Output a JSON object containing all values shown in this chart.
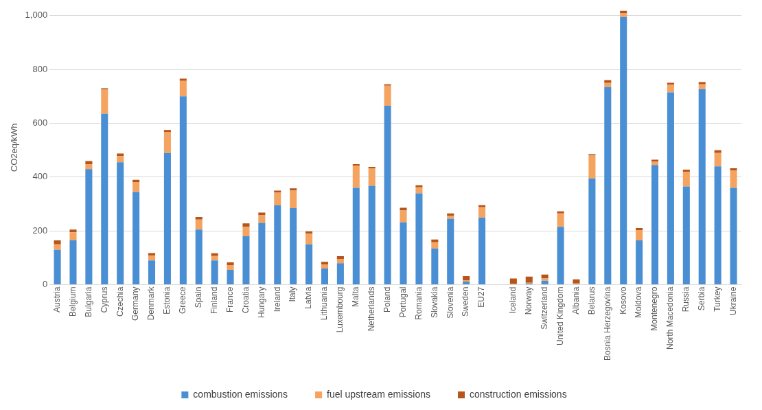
{
  "chart_data": {
    "type": "bar",
    "stacked": true,
    "ylabel": "CO2eq/kWh",
    "ylim": [
      0,
      1020
    ],
    "yticks": [
      0,
      200,
      400,
      600,
      800,
      {
        "value": 1000,
        "label": "1,000"
      }
    ],
    "grid": "y",
    "legend": "bottom",
    "categories": [
      "Austria",
      "Belgium",
      "Bulgaria",
      "Cyprus",
      "Czechia",
      "Germany",
      "Denmark",
      "Estonia",
      "Greece",
      "Spain",
      "Finland",
      "France",
      "Croatia",
      "Hungary",
      "Ireland",
      "Italy",
      "Latvia",
      "Lithuania",
      "Luxembourg",
      "Malta",
      "Netherlands",
      "Poland",
      "Portugal",
      "Romania",
      "Slovakia",
      "Slovenia",
      "Sweden",
      "EU27",
      null,
      "Iceland",
      "Norway",
      "Switzerland",
      "United Kingdom",
      "Albania",
      "Belarus",
      "Bosnia Herzegovina",
      "Kosovo",
      "Moldova",
      "Montenegro",
      "North Macedonia",
      "Russia",
      "Serbia",
      "Turkey",
      "Ukraine"
    ],
    "series": [
      {
        "name": "combustion emissions",
        "color": "#4a8fd4",
        "values": [
          130,
          165,
          430,
          635,
          455,
          345,
          90,
          490,
          700,
          205,
          90,
          55,
          180,
          230,
          295,
          285,
          150,
          60,
          80,
          360,
          368,
          665,
          232,
          340,
          135,
          245,
          12,
          250,
          null,
          null,
          5,
          15,
          215,
          3,
          395,
          735,
          995,
          165,
          445,
          715,
          365,
          727,
          440,
          360
        ]
      },
      {
        "name": "fuel upstream emissions",
        "color": "#f4a460",
        "values": [
          20,
          30,
          18,
          90,
          23,
          37,
          18,
          77,
          58,
          37,
          17,
          18,
          35,
          28,
          47,
          65,
          40,
          15,
          15,
          83,
          65,
          75,
          44,
          22,
          23,
          12,
          5,
          38,
          null,
          3,
          2,
          8,
          50,
          2,
          85,
          15,
          15,
          38,
          12,
          28,
          55,
          18,
          50,
          65
        ]
      },
      {
        "name": "construction emissions",
        "color": "#b5551a",
        "values": [
          15,
          10,
          12,
          5,
          10,
          8,
          10,
          8,
          8,
          10,
          10,
          10,
          13,
          10,
          8,
          8,
          8,
          10,
          11,
          5,
          5,
          5,
          10,
          8,
          10,
          8,
          15,
          8,
          null,
          20,
          23,
          15,
          8,
          15,
          5,
          10,
          8,
          8,
          8,
          8,
          8,
          8,
          10,
          8
        ]
      }
    ]
  }
}
